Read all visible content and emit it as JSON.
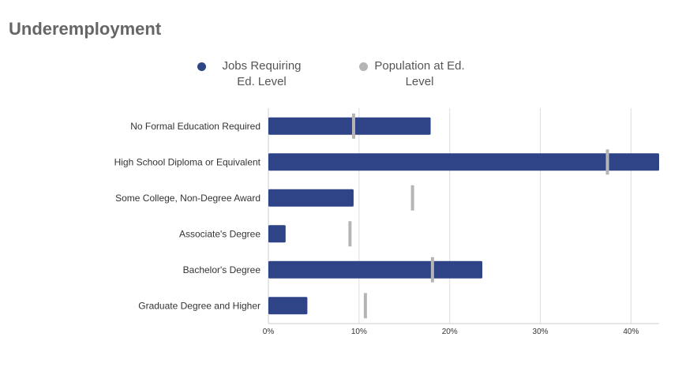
{
  "title": "Underemployment",
  "legend": {
    "jobs_label": "Jobs Requiring Ed. Level",
    "population_label": "Population at Ed. Level"
  },
  "colors": {
    "jobs": "#2e4486",
    "population": "#b5b5b5",
    "grid": "#dddddd",
    "title": "#666666"
  },
  "chart_data": {
    "type": "bar",
    "orientation": "horizontal",
    "title": "Underemployment",
    "categories": [
      "No Formal Education Required",
      "High School Diploma or Equivalent",
      "Some College, Non-Degree Award",
      "Associate's Degree",
      "Bachelor's Degree",
      "Graduate Degree and Higher"
    ],
    "series": [
      {
        "name": "Jobs Requiring Ed. Level",
        "style": "bar",
        "values": [
          17.9,
          43.1,
          9.4,
          1.9,
          23.6,
          4.3
        ]
      },
      {
        "name": "Population at Ed. Level",
        "style": "marker",
        "values": [
          9.4,
          37.4,
          15.9,
          9.0,
          18.1,
          10.7
        ]
      }
    ],
    "x_ticks": [
      "0%",
      "10%",
      "20%",
      "30%",
      "40%"
    ],
    "x_tick_values": [
      0,
      10,
      20,
      30,
      40
    ],
    "xlim": [
      0,
      43.1
    ],
    "grid": true,
    "legend_position": "top"
  }
}
